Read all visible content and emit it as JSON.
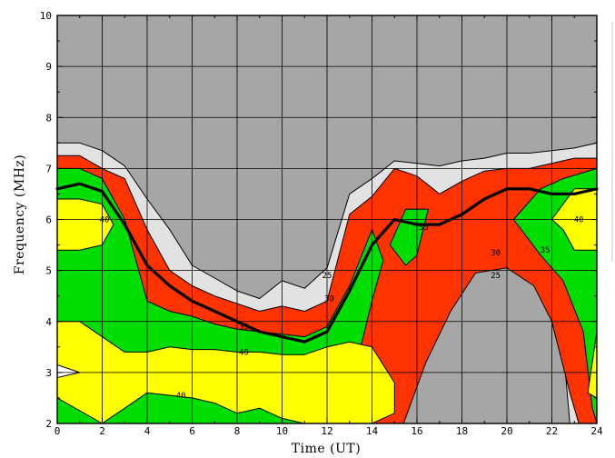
{
  "chart_data": {
    "type": "contour",
    "title": "",
    "xlabel": "Time (UT)",
    "ylabel": "Frequency (MHz)",
    "xlim": [
      0,
      24
    ],
    "ylim": [
      2,
      10
    ],
    "x_ticks": [
      "0",
      "2",
      "4",
      "6",
      "8",
      "10",
      "12",
      "14",
      "16",
      "18",
      "20",
      "22",
      "24"
    ],
    "y_ticks": [
      "2",
      "3",
      "4",
      "5",
      "6",
      "7",
      "8",
      "9",
      "10"
    ],
    "grid": true,
    "colors": {
      "background": "#a6a6a6",
      "band_25": "#e2e2e2",
      "band_30": "#ff3300",
      "band_35": "#00dd00",
      "band_40": "#ffff00",
      "band_max": "#ffffff",
      "muf": "#000000"
    },
    "levels": [
      {
        "name": "25",
        "color": "#e2e2e2",
        "regions": [
          [
            [
              0,
              2
            ],
            [
              0,
              7.5
            ],
            [
              1,
              7.5
            ],
            [
              2,
              7.35
            ],
            [
              3,
              7.05
            ],
            [
              4,
              6.4
            ],
            [
              5,
              5.8
            ],
            [
              6,
              5.1
            ],
            [
              7,
              4.85
            ],
            [
              8,
              4.6
            ],
            [
              9,
              4.45
            ],
            [
              10,
              4.8
            ],
            [
              11,
              4.65
            ],
            [
              12,
              5.05
            ],
            [
              13,
              6.5
            ],
            [
              14,
              6.8
            ],
            [
              15,
              7.15
            ],
            [
              16,
              7.1
            ],
            [
              17,
              7.05
            ],
            [
              18,
              7.15
            ],
            [
              19,
              7.2
            ],
            [
              20,
              7.3
            ],
            [
              21,
              7.3
            ],
            [
              22,
              7.35
            ],
            [
              23,
              7.4
            ],
            [
              24,
              7.5
            ],
            [
              24,
              2
            ],
            [
              22.8,
              2
            ],
            [
              22.6,
              3
            ],
            [
              21.5,
              4.8
            ],
            [
              20,
              5.5
            ],
            [
              18.5,
              5.4
            ],
            [
              17,
              4
            ],
            [
              16,
              3
            ],
            [
              15,
              2
            ]
          ]
        ]
      },
      {
        "name": "30",
        "color": "#ff3300",
        "regions": [
          [
            [
              0,
              2
            ],
            [
              0,
              7.25
            ],
            [
              1,
              7.25
            ],
            [
              2,
              7
            ],
            [
              3,
              6.8
            ],
            [
              4,
              5.8
            ],
            [
              5,
              5
            ],
            [
              6,
              4.7
            ],
            [
              7,
              4.5
            ],
            [
              8,
              4.35
            ],
            [
              9,
              4.2
            ],
            [
              10,
              4.3
            ],
            [
              11,
              4.2
            ],
            [
              12,
              4.4
            ],
            [
              13,
              6.1
            ],
            [
              14,
              6.45
            ],
            [
              15,
              7
            ],
            [
              16,
              6.85
            ],
            [
              17,
              6.5
            ],
            [
              18,
              6.75
            ],
            [
              19,
              6.95
            ],
            [
              20,
              7
            ],
            [
              21,
              7
            ],
            [
              22,
              7.1
            ],
            [
              23,
              7.2
            ],
            [
              24,
              7.2
            ],
            [
              24,
              2
            ],
            [
              23.2,
              2
            ],
            [
              22.8,
              2.6
            ],
            [
              22,
              4
            ],
            [
              21.2,
              4.7
            ],
            [
              20,
              5.05
            ],
            [
              18.6,
              4.95
            ],
            [
              17.5,
              4.2
            ],
            [
              16.4,
              3.2
            ],
            [
              15.4,
              2
            ]
          ]
        ]
      },
      {
        "name": "35",
        "color": "#00dd00",
        "regions": [
          [
            [
              0,
              2
            ],
            [
              0,
              7
            ],
            [
              1,
              7
            ],
            [
              2,
              6.8
            ],
            [
              3,
              6
            ],
            [
              4,
              4.4
            ],
            [
              5,
              4.2
            ],
            [
              6,
              4.1
            ],
            [
              7,
              3.95
            ],
            [
              8,
              3.85
            ],
            [
              9,
              3.8
            ],
            [
              10,
              3.75
            ],
            [
              11,
              3.7
            ],
            [
              12,
              3.9
            ],
            [
              13,
              4.7
            ],
            [
              14,
              5.8
            ],
            [
              14.5,
              5.2
            ],
            [
              14,
              4.4
            ],
            [
              13.5,
              3.5
            ],
            [
              13,
              2.8
            ],
            [
              12.5,
              2
            ],
            [
              0.5,
              2
            ]
          ],
          [
            [
              14.8,
              5.5
            ],
            [
              15.5,
              6.2
            ],
            [
              16.5,
              6.2
            ],
            [
              16,
              5.3
            ],
            [
              15.5,
              5.1
            ]
          ],
          [
            [
              20.3,
              6
            ],
            [
              21.5,
              6.6
            ],
            [
              22.5,
              6.8
            ],
            [
              24,
              7
            ],
            [
              24,
              2
            ],
            [
              23.8,
              2.3
            ],
            [
              23.4,
              3.8
            ],
            [
              22.5,
              4.8
            ],
            [
              21.5,
              5.3
            ]
          ]
        ]
      },
      {
        "name": "40",
        "color": "#ffff00",
        "regions": [
          [
            [
              0,
              2.5
            ],
            [
              0,
              4
            ],
            [
              1,
              4
            ],
            [
              2,
              3.7
            ],
            [
              3,
              3.4
            ],
            [
              4,
              3.4
            ],
            [
              5,
              3.5
            ],
            [
              6,
              3.45
            ],
            [
              7,
              3.45
            ],
            [
              8,
              3.4
            ],
            [
              9,
              3.4
            ],
            [
              10,
              3.35
            ],
            [
              11,
              3.35
            ],
            [
              12,
              3.5
            ],
            [
              13,
              3.6
            ],
            [
              14,
              3.5
            ],
            [
              15,
              2.8
            ],
            [
              15,
              2.2
            ],
            [
              14,
              2
            ],
            [
              11,
              2
            ],
            [
              10,
              2.1
            ],
            [
              9,
              2.3
            ],
            [
              8,
              2.2
            ],
            [
              7,
              2.4
            ],
            [
              6,
              2.5
            ],
            [
              4,
              2.6
            ],
            [
              3,
              2.3
            ],
            [
              2,
              2
            ]
          ],
          [
            [
              0,
              5.4
            ],
            [
              0,
              6.4
            ],
            [
              1,
              6.4
            ],
            [
              2,
              6.3
            ],
            [
              2.5,
              5.9
            ],
            [
              2,
              5.5
            ],
            [
              1,
              5.4
            ]
          ],
          [
            [
              22,
              6
            ],
            [
              23,
              6.6
            ],
            [
              24,
              6.6
            ],
            [
              24,
              5.4
            ],
            [
              23,
              5.4
            ],
            [
              22.5,
              5.8
            ]
          ],
          [
            [
              23.6,
              2.6
            ],
            [
              24,
              3.8
            ],
            [
              24,
              2.5
            ]
          ]
        ]
      },
      {
        "name": "",
        "color": "#ffffff",
        "regions": [
          [
            [
              0,
              3
            ],
            [
              0,
              3.15
            ],
            [
              1,
              3
            ],
            [
              0,
              2.9
            ]
          ]
        ]
      }
    ],
    "muf_line": {
      "x": [
        0,
        1,
        2,
        3,
        4,
        5,
        6,
        7,
        8,
        9,
        10,
        11,
        12,
        13,
        14,
        15,
        16,
        17,
        18,
        19,
        20,
        21,
        22,
        23,
        24
      ],
      "y": [
        6.6,
        6.7,
        6.55,
        5.9,
        5.1,
        4.7,
        4.4,
        4.2,
        4.0,
        3.8,
        3.7,
        3.6,
        3.8,
        4.6,
        5.5,
        6.0,
        5.9,
        5.9,
        6.1,
        6.4,
        6.6,
        6.6,
        6.5,
        6.5,
        6.6
      ]
    },
    "contour_labels": [
      {
        "text": "40",
        "x": 2.1,
        "y": 6.0
      },
      {
        "text": "40",
        "x": 23.2,
        "y": 6.0
      },
      {
        "text": "40",
        "x": 8.3,
        "y": 3.4
      },
      {
        "text": "40",
        "x": 5.5,
        "y": 2.55
      },
      {
        "text": "35",
        "x": 8.3,
        "y": 3.9
      },
      {
        "text": "35",
        "x": 16.3,
        "y": 5.85
      },
      {
        "text": "35",
        "x": 21.7,
        "y": 5.4
      },
      {
        "text": "30",
        "x": 12.1,
        "y": 4.45
      },
      {
        "text": "30",
        "x": 19.5,
        "y": 5.35
      },
      {
        "text": "25",
        "x": 12.0,
        "y": 4.9
      },
      {
        "text": "25",
        "x": 19.5,
        "y": 4.9
      }
    ]
  }
}
